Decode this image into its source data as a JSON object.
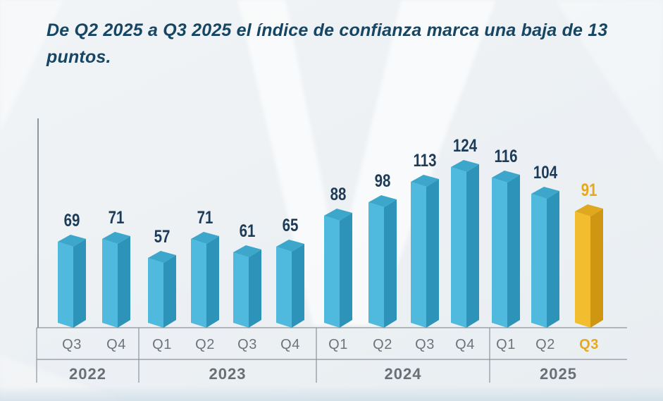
{
  "title": "De Q2 2025 a Q3 2025 el índice de confianza marca una baja de 13 puntos.",
  "colors": {
    "background": "#edf1f4",
    "title": "#164663",
    "value_label": "#1d3b57",
    "gold_label": "#e7a81d",
    "axis": "#4d5965",
    "table_line": "#8d949b",
    "quarter_label": "#6e747a",
    "year_label": "#696f74",
    "blue_bar": {
      "left": "#4fbade",
      "right": "#2d93b9",
      "top": "#3ca7cb"
    },
    "gold_bar": {
      "left": "#f2bd2f",
      "right": "#cf9611",
      "top": "#e0a81e"
    }
  },
  "chart_data": {
    "type": "bar",
    "title": "De Q2 2025 a Q3 2025 el índice de confianza marca una baja de 13 puntos.",
    "categories": [
      "Q3 2022",
      "Q4 2022",
      "Q1 2023",
      "Q2 2023",
      "Q3 2023",
      "Q4 2023",
      "Q1 2024",
      "Q2 2024",
      "Q3 2024",
      "Q4 2024",
      "Q1 2025",
      "Q2 2025",
      "Q3 2025"
    ],
    "values": [
      69,
      71,
      57,
      71,
      61,
      65,
      88,
      98,
      113,
      124,
      116,
      104,
      91
    ],
    "highlighted_category": "Q3 2025",
    "legend": "none",
    "grid": "off",
    "bars": [
      {
        "year": "2022",
        "quarter": "Q3",
        "value": 69,
        "highlighted": false
      },
      {
        "year": "2022",
        "quarter": "Q4",
        "value": 71,
        "highlighted": false
      },
      {
        "year": "2023",
        "quarter": "Q1",
        "value": 57,
        "highlighted": false
      },
      {
        "year": "2023",
        "quarter": "Q2",
        "value": 71,
        "highlighted": false
      },
      {
        "year": "2023",
        "quarter": "Q3",
        "value": 61,
        "highlighted": false
      },
      {
        "year": "2023",
        "quarter": "Q4",
        "value": 65,
        "highlighted": false
      },
      {
        "year": "2024",
        "quarter": "Q1",
        "value": 88,
        "highlighted": false
      },
      {
        "year": "2024",
        "quarter": "Q2",
        "value": 98,
        "highlighted": false
      },
      {
        "year": "2024",
        "quarter": "Q3",
        "value": 113,
        "highlighted": false
      },
      {
        "year": "2024",
        "quarter": "Q4",
        "value": 124,
        "highlighted": false
      },
      {
        "year": "2025",
        "quarter": "Q1",
        "value": 116,
        "highlighted": false
      },
      {
        "year": "2025",
        "quarter": "Q2",
        "value": 104,
        "highlighted": false
      },
      {
        "year": "2025",
        "quarter": "Q3",
        "value": 91,
        "highlighted": true
      }
    ],
    "year_groups": [
      {
        "label": "2022",
        "bars": 2
      },
      {
        "label": "2023",
        "bars": 4
      },
      {
        "label": "2024",
        "bars": 4
      },
      {
        "label": "2025",
        "bars": 3
      }
    ]
  }
}
